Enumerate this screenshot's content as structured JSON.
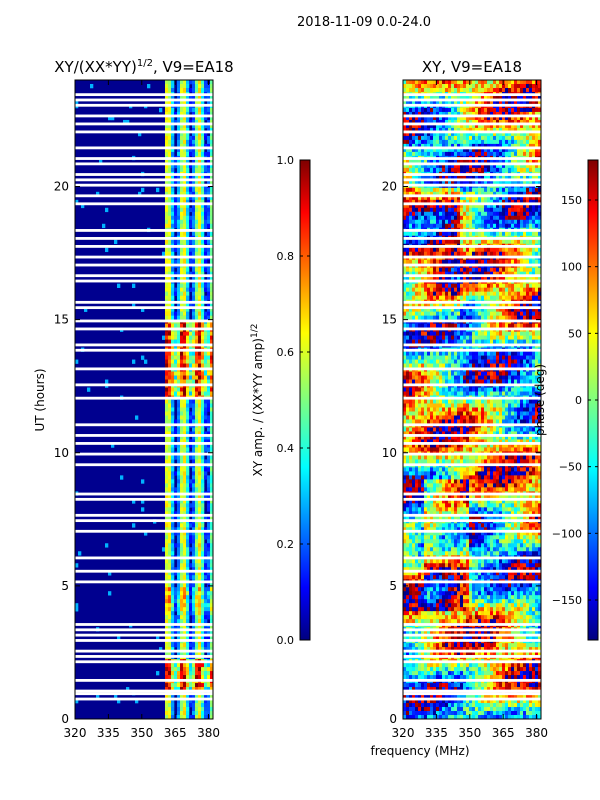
{
  "suptitle": "2018-11-09 0.0-24.0",
  "xlabel_shared": "frequency (MHz)",
  "colors": {
    "background": "#00008f",
    "jet_stops": [
      "#00007f",
      "#0000ff",
      "#007fff",
      "#00ffff",
      "#7fff7f",
      "#ffff00",
      "#ff7f00",
      "#ff0000",
      "#7f0000"
    ]
  },
  "chart_data": [
    {
      "type": "heatmap",
      "title": "XY/(XX*YY)",
      "title_exponent": "1/2",
      "title_suffix": ", V9=EA18",
      "xlabel": "",
      "ylabel": "UT (hours)",
      "xlim": [
        320,
        382
      ],
      "ylim": [
        0,
        24
      ],
      "xticks": [
        "320",
        "335",
        "350",
        "365",
        "380"
      ],
      "xtick_values": [
        320,
        335,
        350,
        365,
        380
      ],
      "yticks": [
        "0",
        "5",
        "10",
        "15",
        "20"
      ],
      "ytick_values": [
        0,
        5,
        10,
        15,
        20
      ],
      "colorbar": {
        "label": "XY amp. / (XX*YY amp)",
        "label_exponent": "1/2",
        "range": [
          0.0,
          1.0
        ],
        "ticks": [
          "0.0",
          "0.2",
          "0.4",
          "0.6",
          "0.8",
          "1.0"
        ],
        "tick_values": [
          0.0,
          0.2,
          0.4,
          0.6,
          0.8,
          1.0
        ]
      },
      "description": "mostly low amplitude (~0.05) below 360 MHz; elevated 0.3-0.9 in 360-380 MHz band, peaks near 1.2-2 h and 12-15 h"
    },
    {
      "type": "heatmap",
      "title": "XY, V9=EA18",
      "xlabel": "frequency (MHz)",
      "ylabel": "",
      "xlim": [
        320,
        382
      ],
      "ylim": [
        0,
        24
      ],
      "xticks": [
        "320",
        "335",
        "350",
        "365",
        "380"
      ],
      "xtick_values": [
        320,
        335,
        350,
        365,
        380
      ],
      "yticks": [
        "0",
        "5",
        "10",
        "15",
        "20"
      ],
      "ytick_values": [
        0,
        5,
        10,
        15,
        20
      ],
      "colorbar": {
        "label": "phase (deg)",
        "range": [
          -180,
          180
        ],
        "ticks": [
          "−150",
          "−100",
          "−50",
          "0",
          "50",
          "100",
          "150"
        ],
        "tick_values": [
          -150,
          -100,
          -50,
          0,
          50,
          100,
          150
        ]
      },
      "description": "phase values spanning the full -180 to 180 deg range, noisy"
    }
  ],
  "gaps_hours": [
    0.75,
    0.95,
    1.05,
    1.45,
    2.15,
    2.35,
    2.55,
    2.95,
    3.15,
    3.35,
    3.55,
    5.15,
    5.55,
    6.05,
    7.05,
    7.45,
    7.65,
    8.25,
    8.45,
    9.55,
    9.95,
    10.35,
    10.65,
    11.05,
    12.05,
    12.55,
    13.15,
    13.85,
    14.05,
    14.65,
    14.95,
    15.45,
    15.65,
    16.45,
    16.65,
    17.05,
    17.35,
    17.75,
    18.05,
    18.35,
    19.35,
    19.65,
    20.05,
    20.25,
    20.45,
    20.85,
    21.05,
    21.45,
    22.05,
    22.35,
    22.65,
    23.05,
    23.25,
    23.45
  ]
}
